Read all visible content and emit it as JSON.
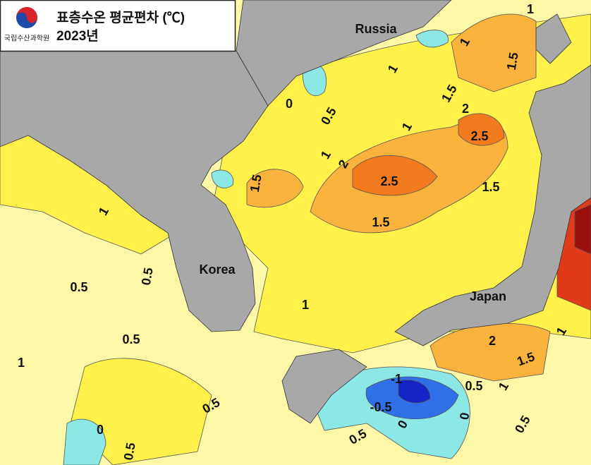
{
  "header": {
    "logo_text": "국립수산과학원",
    "title": "표층수온 평균편차 (℃)",
    "year": "2023년"
  },
  "places": [
    "Russia",
    "Korea",
    "Japan"
  ],
  "contour_labels": [
    "0",
    "0.5",
    "1",
    "1.5",
    "2",
    "2.5",
    "1.5",
    "1",
    "1.5",
    "2",
    "2.5",
    "1.5",
    "1.5",
    "1",
    "1",
    "1",
    "1",
    "0.5",
    "0.5",
    "0.5",
    "1",
    "0.5",
    "1",
    "0",
    "0.5",
    "2",
    "1.5",
    "1",
    "1",
    "0.5",
    "-1",
    "-0.5",
    "0",
    "0",
    "0.5",
    "0.5"
  ]
}
